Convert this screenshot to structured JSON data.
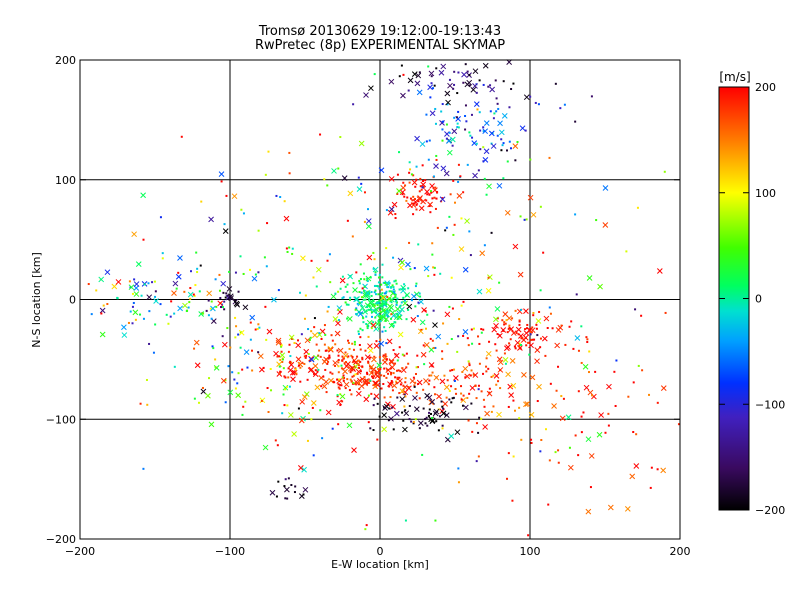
{
  "chart_data": {
    "type": "scatter",
    "title": "Tromsø 20130629 19:12:00-19:13:43",
    "subtitle": "RwPretec (8p) EXPERIMENTAL SKYMAP",
    "xlabel": "E-W location [km]",
    "ylabel": "N-S location [km]",
    "xlim": [
      -200,
      200
    ],
    "ylim": [
      -200,
      200
    ],
    "xticks": [
      -200,
      -100,
      0,
      100,
      200
    ],
    "yticks": [
      -200,
      -100,
      0,
      100,
      200
    ],
    "grid": true,
    "colorbar": {
      "label": "[m/s]",
      "range": [
        -200,
        200
      ],
      "ticks": [
        -200,
        -100,
        0,
        100,
        200
      ],
      "colormap": [
        "#000000",
        "#5a1a80",
        "#0000ff",
        "#00c0ff",
        "#00ff80",
        "#00ff00",
        "#c0ff00",
        "#ffff00",
        "#ff8000",
        "#ff0000"
      ]
    },
    "marker_types": [
      "dot",
      "x"
    ],
    "clusters": [
      {
        "center": [
          0,
          0
        ],
        "spread": [
          12,
          12
        ],
        "value_mean": 10,
        "value_spread": 25,
        "count": 260
      },
      {
        "center": [
          -30,
          -50
        ],
        "spread": [
          22,
          12
        ],
        "value_mean": 185,
        "value_spread": 20,
        "count": 150
      },
      {
        "center": [
          0,
          -65
        ],
        "spread": [
          18,
          9
        ],
        "value_mean": 185,
        "value_spread": 20,
        "count": 150
      },
      {
        "center": [
          95,
          -30
        ],
        "spread": [
          15,
          10
        ],
        "value_mean": 195,
        "value_spread": 15,
        "count": 90
      },
      {
        "center": [
          60,
          -70
        ],
        "spread": [
          22,
          12
        ],
        "value_mean": 170,
        "value_spread": 30,
        "count": 80
      },
      {
        "center": [
          25,
          90
        ],
        "spread": [
          9,
          10
        ],
        "value_mean": 195,
        "value_spread": 15,
        "count": 70
      },
      {
        "center": [
          30,
          -95
        ],
        "spread": [
          22,
          10
        ],
        "value_mean": -185,
        "value_spread": 20,
        "count": 70
      },
      {
        "center": [
          60,
          140
        ],
        "spread": [
          22,
          20
        ],
        "value_mean": -70,
        "value_spread": 60,
        "count": 110
      },
      {
        "center": [
          50,
          185
        ],
        "spread": [
          35,
          10
        ],
        "value_mean": -170,
        "value_spread": 30,
        "count": 60
      },
      {
        "center": [
          -150,
          0
        ],
        "spread": [
          40,
          20
        ],
        "value_mean": 0,
        "value_spread": 100,
        "count": 110
      },
      {
        "center": [
          0,
          0
        ],
        "spread": [
          80,
          70
        ],
        "value_mean": 80,
        "value_spread": 120,
        "count": 350
      },
      {
        "center": [
          -60,
          -60
        ],
        "spread": [
          40,
          30
        ],
        "value_mean": 120,
        "value_spread": 90,
        "count": 120
      },
      {
        "center": [
          140,
          -100
        ],
        "spread": [
          35,
          40
        ],
        "value_mean": 180,
        "value_spread": 30,
        "count": 80
      },
      {
        "center": [
          -100,
          0
        ],
        "spread": [
          5,
          4
        ],
        "value_mean": -180,
        "value_spread": 20,
        "count": 20
      },
      {
        "center": [
          -60,
          -160
        ],
        "spread": [
          8,
          5
        ],
        "value_mean": -180,
        "value_spread": 20,
        "count": 15
      }
    ]
  }
}
